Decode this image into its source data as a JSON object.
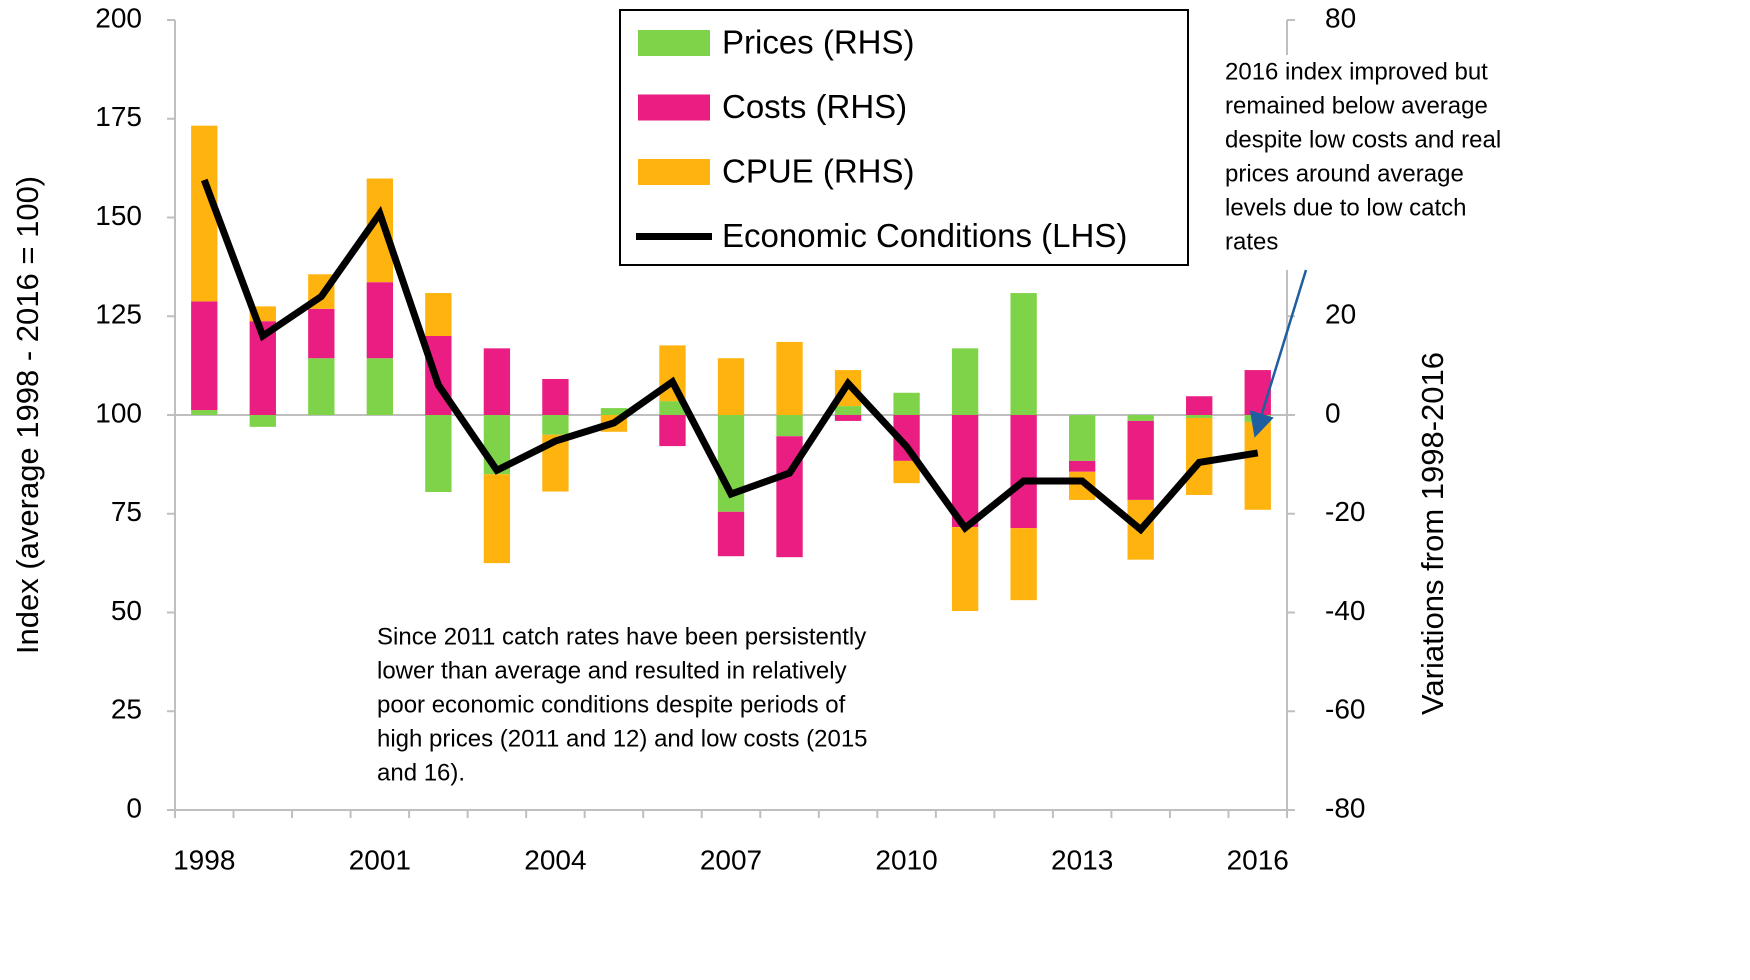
{
  "chart_data": {
    "type": "bar",
    "categories": [
      "1998",
      null,
      null,
      "2001",
      null,
      null,
      "2004",
      null,
      null,
      "2007",
      null,
      null,
      "2010",
      null,
      null,
      "2013",
      null,
      null,
      "2016"
    ],
    "ylabel": "Index (average 1998 - 2016 = 100)",
    "y2label": "Variations from 1998-2016",
    "ylim": [
      0,
      200
    ],
    "yticks": [
      0,
      25,
      50,
      75,
      100,
      125,
      150,
      175,
      200
    ],
    "y2lim": [
      -80,
      80
    ],
    "y2ticks": [
      -80,
      -60,
      -40,
      -20,
      0,
      20,
      80
    ],
    "series": [
      {
        "name": "Prices (RHS)",
        "color": "#7ed348",
        "axis": "y2",
        "values": [
          1,
          -2.4,
          11.5,
          11.5,
          -15.6,
          -12,
          -4,
          1.4,
          2.8,
          -19.6,
          -4.3,
          1.8,
          4.5,
          13.5,
          24.7,
          -9.3,
          -1.2,
          -0.6,
          -1.4
        ]
      },
      {
        "name": "Costs (RHS)",
        "color": "#ea1e82",
        "axis": "y2",
        "values": [
          22,
          19,
          10,
          15.4,
          16,
          13.5,
          7.3,
          0,
          -6.3,
          -9,
          -24.5,
          -1.2,
          -9.3,
          -22.7,
          -22.9,
          -2.2,
          -16,
          3.8,
          9.1
        ]
      },
      {
        "name": "CPUE (RHS)",
        "color": "#ffb30f",
        "axis": "y2",
        "values": [
          35.6,
          3,
          7,
          21,
          8.7,
          -18,
          -11.5,
          -3.4,
          11.3,
          11.5,
          14.8,
          7.3,
          -4.5,
          -17,
          -14.6,
          -5.7,
          -12.1,
          -15.6,
          -17.8
        ]
      },
      {
        "name": "Economic  Conditions (LHS)",
        "color": "#000000",
        "axis": "y",
        "type": "line",
        "values": [
          159.5,
          120,
          130,
          151,
          107.6,
          86,
          93.4,
          98,
          108.4,
          80,
          85.3,
          108,
          92,
          71.4,
          83.3,
          83.3,
          71,
          88,
          90.4
        ]
      }
    ],
    "annotations": [
      {
        "lines": [
          "2016 index improved but",
          "remained below average",
          "despite low costs and real",
          "prices around average",
          "levels due to low catch",
          "rates"
        ]
      },
      {
        "lines": [
          "Since 2011 catch rates have been persistently",
          "lower than average and resulted in relatively",
          "poor economic conditions despite periods of",
          "high prices (2011 and 12) and low costs (2015",
          "and 16)."
        ]
      }
    ]
  }
}
